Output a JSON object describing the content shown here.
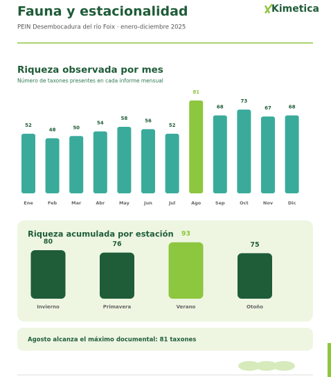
{
  "header": {
    "title": "Fauna y estacionalidad",
    "logo": "Kimetica",
    "subtitle": "PEIN Desembocadura del río Foix · enero-diciembre 2025"
  },
  "chart_data": [
    {
      "type": "bar",
      "title": "Riqueza observada por mes",
      "subtitle": "Número de taxones presentes en cada informe mensual",
      "categories": [
        "Ene",
        "Feb",
        "Mar",
        "Abr",
        "May",
        "Jun",
        "Jul",
        "Ago",
        "Sep",
        "Oct",
        "Nov",
        "Dic"
      ],
      "values": [
        52,
        48,
        50,
        54,
        58,
        56,
        52,
        81,
        68,
        73,
        67,
        68
      ],
      "color": "#3aab9b",
      "colors": [
        "#3aab9b",
        "#3aab9b",
        "#3aab9b",
        "#3aab9b",
        "#3aab9b",
        "#3aab9b",
        "#3aab9b",
        "#8dc63f",
        "#3aab9b",
        "#3aab9b",
        "#3aab9b",
        "#3aab9b"
      ]
    },
    {
      "type": "bar",
      "title": "Riqueza acumulada por estación",
      "categories": [
        "Invierno",
        "Primavera",
        "Verano",
        "Otoño"
      ],
      "values": [
        80,
        76,
        93,
        75
      ],
      "color": "#1f5c38",
      "colors": [
        "#1f5c38",
        "#1f5c38",
        "#8dc63f",
        "#1f5c38"
      ]
    }
  ],
  "note": "Agosto alcanza el máximo documental: 81 taxones"
}
